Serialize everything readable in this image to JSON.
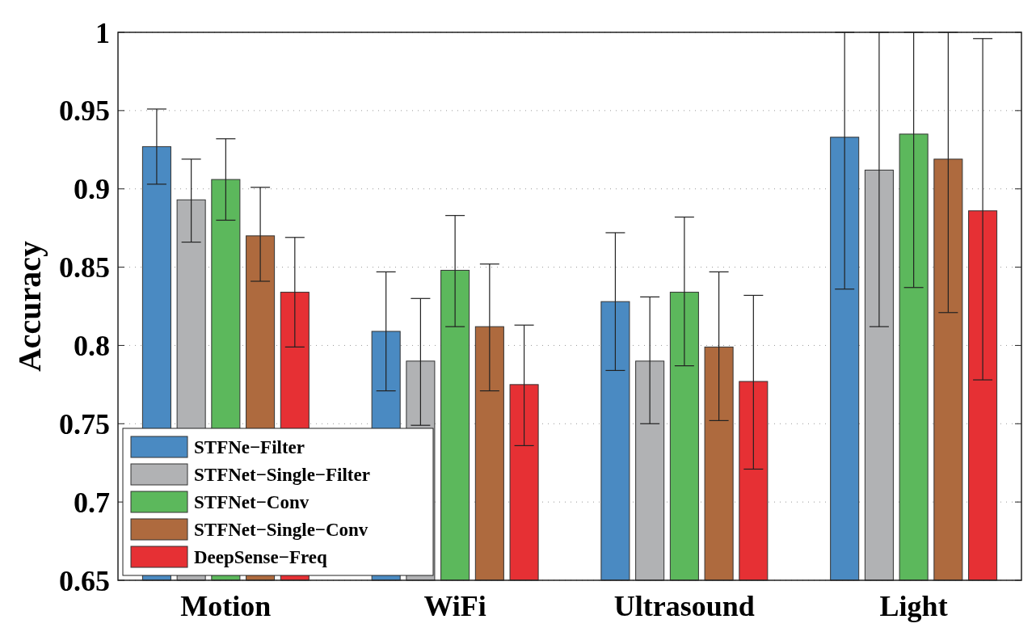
{
  "chart_data": {
    "type": "bar",
    "ylabel": "Accuracy",
    "categories": [
      "Motion",
      "WiFi",
      "Ultrasound",
      "Light"
    ],
    "ylim": [
      0.65,
      1
    ],
    "yticks": [
      0.65,
      0.7,
      0.75,
      0.8,
      0.85,
      0.9,
      0.95,
      1
    ],
    "grid": "y",
    "legend": "bottom left",
    "series": [
      {
        "name": "STFNe−Filter",
        "color": "#4a8ac2",
        "values": [
          0.927,
          0.809,
          0.828,
          0.933
        ],
        "errors": [
          [
            0.903,
            0.951
          ],
          [
            0.771,
            0.847
          ],
          [
            0.784,
            0.872
          ],
          [
            0.836,
            1
          ]
        ]
      },
      {
        "name": "STFNet−Single−Filter",
        "color": "#b1b2b4",
        "values": [
          0.893,
          0.79,
          0.79,
          0.912
        ],
        "errors": [
          [
            0.866,
            0.919
          ],
          [
            0.749,
            0.83
          ],
          [
            0.75,
            0.831
          ],
          [
            0.812,
            1
          ]
        ]
      },
      {
        "name": "STFNet−Conv",
        "color": "#5cb85c",
        "values": [
          0.906,
          0.848,
          0.834,
          0.935
        ],
        "errors": [
          [
            0.88,
            0.932
          ],
          [
            0.812,
            0.883
          ],
          [
            0.787,
            0.882
          ],
          [
            0.837,
            1
          ]
        ]
      },
      {
        "name": "STFNet−Single−Conv",
        "color": "#ae6a3e",
        "values": [
          0.87,
          0.812,
          0.799,
          0.919
        ],
        "errors": [
          [
            0.841,
            0.901
          ],
          [
            0.771,
            0.852
          ],
          [
            0.752,
            0.847
          ],
          [
            0.821,
            1
          ]
        ]
      },
      {
        "name": "DeepSense−Freq",
        "color": "#e63034",
        "values": [
          0.834,
          0.775,
          0.777,
          0.886
        ],
        "errors": [
          [
            0.799,
            0.869
          ],
          [
            0.736,
            0.813
          ],
          [
            0.721,
            0.832
          ],
          [
            0.778,
            0.996
          ]
        ]
      }
    ]
  }
}
